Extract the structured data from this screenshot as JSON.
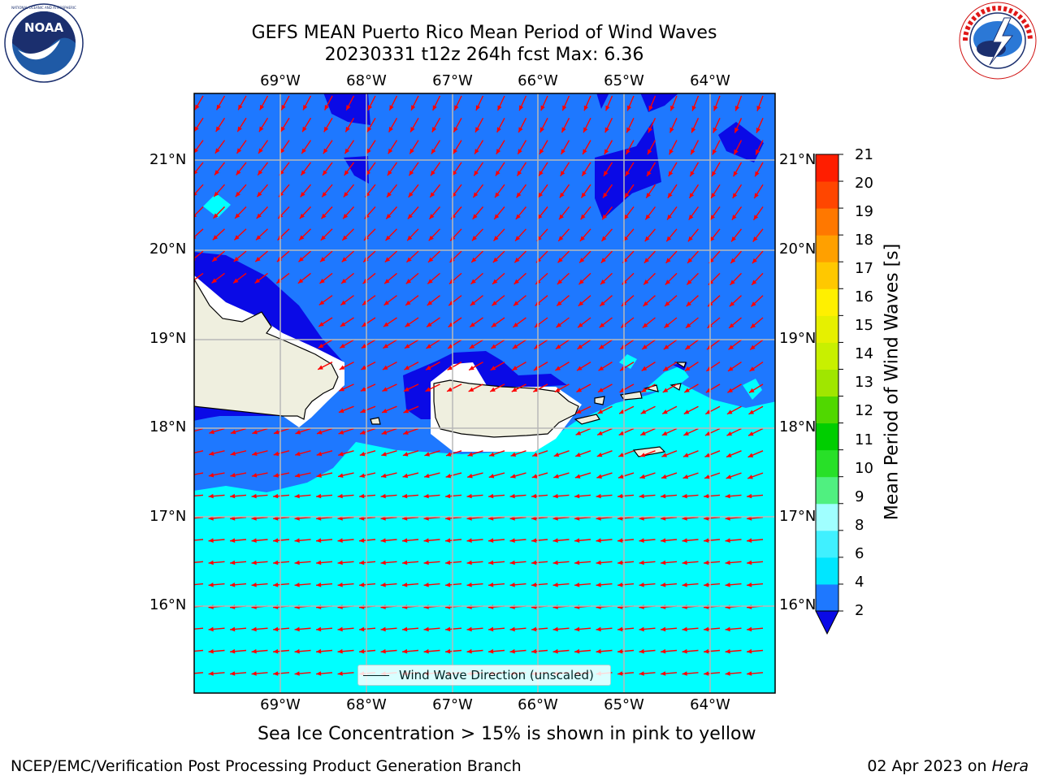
{
  "title": {
    "line1": "GEFS MEAN Puerto Rico Mean Period of Wind Waves",
    "line2": "20230331 t12z 264h fcst   Max: 6.36"
  },
  "logos": {
    "noaa": {
      "text": "NOAA",
      "ring_text": "NATIONAL OCEANIC AND ATMOSPHERIC ADMINISTRATION · U.S. DEPARTMENT OF COMMERCE"
    },
    "nws": {
      "ring_text": "NATIONAL WEATHER SERVICE"
    }
  },
  "map": {
    "lon_labels": [
      "69°W",
      "68°W",
      "67°W",
      "66°W",
      "65°W",
      "64°W"
    ],
    "lat_labels": [
      "21°N",
      "20°N",
      "19°N",
      "18°N",
      "17°N",
      "16°N"
    ],
    "legend_label": "Wind Wave Direction (unscaled)",
    "colors": {
      "band_2_4": "#1e78ff",
      "band_below_2": "#0a0ae6",
      "band_4_6": "#00ffff",
      "land": "#efefdf",
      "arrow": "#ff0000",
      "grid": "#b8b8b8"
    }
  },
  "colorbar": {
    "title": "Mean Period of Wind Waves [s]",
    "tick_labels": [
      "21",
      "20",
      "19",
      "18",
      "17",
      "16",
      "15",
      "14",
      "13",
      "12",
      "11",
      "10",
      "9",
      "8",
      "6",
      "4",
      "2"
    ],
    "levels_bottom_to_top": [
      2,
      4,
      6,
      8,
      9,
      10,
      11,
      12,
      13,
      14,
      15,
      16,
      17,
      18,
      19,
      20,
      21
    ],
    "colors_bottom_to_top": [
      "#1e78ff",
      "#00e6ff",
      "#40f0ff",
      "#a0ffff",
      "#50f080",
      "#28e028",
      "#00ce00",
      "#50d800",
      "#a0e600",
      "#c8f000",
      "#e6f000",
      "#fff000",
      "#ffc800",
      "#ffa000",
      "#ff7800",
      "#ff4600",
      "#ff1e00"
    ],
    "under_color": "#0a0ae6"
  },
  "note": "Sea Ice Concentration > 15% is shown in pink to yellow",
  "footer": {
    "left": "NCEP/EMC/Verification Post Processing Product Generation Branch",
    "right_date": "02 Apr 2023 on ",
    "right_host": "Hera"
  }
}
